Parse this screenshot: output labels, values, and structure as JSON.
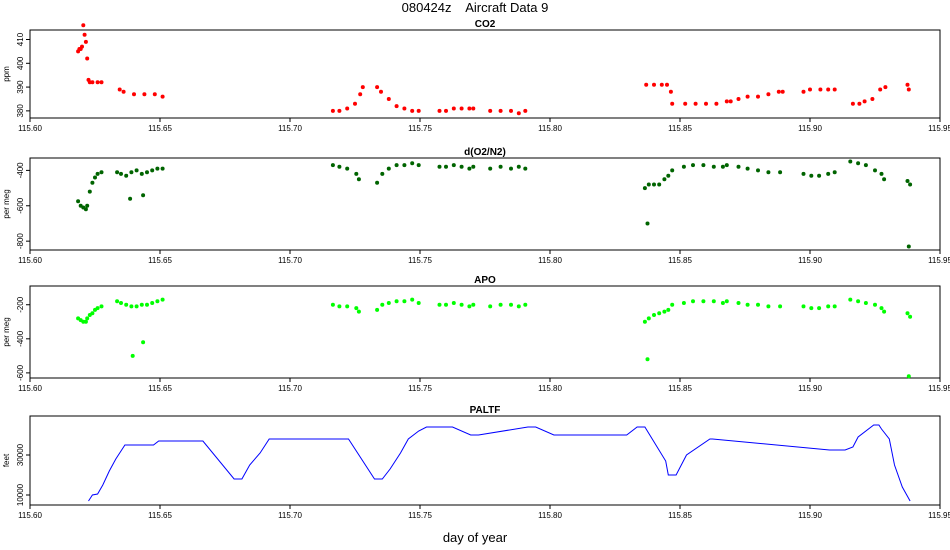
{
  "page": {
    "title": "080424z    Aircraft Data 9",
    "xlabel": "day of year"
  },
  "chart_data": [
    {
      "type": "scatter",
      "title": "CO2",
      "ylabel": "ppm",
      "color": "#ff0000",
      "xlim": [
        115.6,
        115.95
      ],
      "ylim": [
        377,
        414
      ],
      "xticks": [
        115.6,
        115.65,
        115.7,
        115.75,
        115.8,
        115.85,
        115.9,
        115.95
      ],
      "xtick_labels": [
        "115.60",
        "115.65",
        "115.70",
        "115.75",
        "115.80",
        "115.85",
        "115.90",
        "115.95"
      ],
      "yticks": [
        380,
        390,
        400,
        410
      ],
      "ytick_labels": [
        "380",
        "390",
        "400",
        "410"
      ],
      "series": [
        {
          "x": [
            115.6185,
            115.619,
            115.6195,
            115.62,
            115.6205,
            115.621,
            115.6215,
            115.622,
            115.6225,
            115.623,
            115.624,
            115.626,
            115.6275,
            115.6345,
            115.636,
            115.64,
            115.644,
            115.648,
            115.651,
            115.7165,
            115.719,
            115.722,
            115.725,
            115.727,
            115.728,
            115.7335,
            115.735,
            115.738,
            115.741,
            115.744,
            115.747,
            115.7495,
            115.7575,
            115.76,
            115.763,
            115.766,
            115.769,
            115.7705,
            115.777,
            115.781,
            115.785,
            115.788,
            115.7905,
            115.837,
            115.84,
            115.843,
            115.845,
            115.8465,
            115.847,
            115.852,
            115.856,
            115.86,
            115.864,
            115.868,
            115.8695,
            115.8725,
            115.876,
            115.88,
            115.884,
            115.888,
            115.8895,
            115.8975,
            115.9,
            115.904,
            115.907,
            115.9095,
            115.9165,
            115.919,
            115.921,
            115.924,
            115.927,
            115.929,
            115.9375,
            115.938
          ],
          "y": [
            405,
            406,
            406,
            407,
            416,
            412,
            409,
            402,
            393,
            392,
            392,
            392,
            392,
            389,
            388,
            387,
            387,
            387,
            386,
            380,
            380,
            381,
            383,
            387,
            390,
            390,
            388,
            385,
            382,
            381,
            380,
            380,
            380,
            380,
            381,
            381,
            381,
            381,
            380,
            380,
            380,
            379,
            380,
            391,
            391,
            391,
            391,
            388,
            383,
            383,
            383,
            383,
            383,
            384,
            384,
            385,
            386,
            386,
            387,
            388,
            388,
            388,
            389,
            389,
            389,
            389,
            383,
            383,
            384,
            385,
            389,
            390,
            391,
            389
          ]
        }
      ]
    },
    {
      "type": "scatter",
      "title": "d(O2/N2)",
      "ylabel": "per meg",
      "color": "#006400",
      "xlim": [
        115.6,
        115.95
      ],
      "ylim": [
        -850,
        -330
      ],
      "xticks": [
        115.6,
        115.65,
        115.7,
        115.75,
        115.8,
        115.85,
        115.9,
        115.95
      ],
      "xtick_labels": [
        "115.60",
        "115.65",
        "115.70",
        "115.75",
        "115.80",
        "115.85",
        "115.90",
        "115.95"
      ],
      "yticks": [
        -800,
        -600,
        -400
      ],
      "ytick_labels": [
        "-800",
        "-600",
        "-400"
      ],
      "series": [
        {
          "x": [
            115.6185,
            115.6195,
            115.6205,
            115.6215,
            115.622,
            115.623,
            115.624,
            115.625,
            115.626,
            115.6275,
            115.6335,
            115.635,
            115.637,
            115.639,
            115.641,
            115.643,
            115.645,
            115.647,
            115.649,
            115.651,
            115.6385,
            115.6435,
            115.7165,
            115.719,
            115.722,
            115.7255,
            115.7265,
            115.7335,
            115.7355,
            115.738,
            115.741,
            115.744,
            115.747,
            115.7495,
            115.7575,
            115.76,
            115.763,
            115.766,
            115.769,
            115.7705,
            115.777,
            115.781,
            115.785,
            115.788,
            115.7905,
            115.8365,
            115.838,
            115.84,
            115.842,
            115.844,
            115.8455,
            115.847,
            115.8375,
            115.8515,
            115.855,
            115.859,
            115.863,
            115.8665,
            115.868,
            115.8725,
            115.876,
            115.88,
            115.884,
            115.8885,
            115.8975,
            115.9005,
            115.9035,
            115.907,
            115.9095,
            115.9155,
            115.9185,
            115.9215,
            115.925,
            115.9275,
            115.9285,
            115.9375,
            115.9385,
            115.938
          ],
          "y": [
            -575,
            -600,
            -610,
            -620,
            -600,
            -520,
            -470,
            -440,
            -420,
            -410,
            -410,
            -420,
            -430,
            -410,
            -400,
            -420,
            -410,
            -400,
            -390,
            -390,
            -560,
            -540,
            -370,
            -380,
            -390,
            -420,
            -450,
            -470,
            -420,
            -390,
            -370,
            -370,
            -360,
            -370,
            -380,
            -380,
            -370,
            -380,
            -390,
            -380,
            -390,
            -380,
            -390,
            -380,
            -390,
            -500,
            -480,
            -480,
            -480,
            -450,
            -430,
            -400,
            -700,
            -380,
            -370,
            -370,
            -380,
            -380,
            -370,
            -380,
            -390,
            -400,
            -410,
            -410,
            -420,
            -430,
            -430,
            -420,
            -410,
            -350,
            -360,
            -370,
            -400,
            -420,
            -450,
            -460,
            -480,
            -830
          ]
        }
      ]
    },
    {
      "type": "scatter",
      "title": "APO",
      "ylabel": "per meg",
      "color": "#00ff00",
      "xlim": [
        115.6,
        115.95
      ],
      "ylim": [
        -630,
        -90
      ],
      "xticks": [
        115.6,
        115.65,
        115.7,
        115.75,
        115.8,
        115.85,
        115.9,
        115.95
      ],
      "xtick_labels": [
        "115.60",
        "115.65",
        "115.70",
        "115.75",
        "115.80",
        "115.85",
        "115.90",
        "115.95"
      ],
      "yticks": [
        -600,
        -400,
        -200
      ],
      "ytick_labels": [
        "-600",
        "-400",
        "-200"
      ],
      "series": [
        {
          "x": [
            115.6185,
            115.6195,
            115.6205,
            115.6215,
            115.622,
            115.623,
            115.624,
            115.625,
            115.626,
            115.6275,
            115.6335,
            115.635,
            115.637,
            115.639,
            115.641,
            115.643,
            115.645,
            115.647,
            115.649,
            115.651,
            115.6395,
            115.6435,
            115.7165,
            115.719,
            115.722,
            115.7255,
            115.7265,
            115.7335,
            115.7355,
            115.738,
            115.741,
            115.744,
            115.747,
            115.7495,
            115.7575,
            115.76,
            115.763,
            115.766,
            115.769,
            115.7705,
            115.777,
            115.781,
            115.785,
            115.788,
            115.7905,
            115.8365,
            115.838,
            115.84,
            115.842,
            115.844,
            115.8455,
            115.847,
            115.8375,
            115.8515,
            115.855,
            115.859,
            115.863,
            115.8665,
            115.868,
            115.8725,
            115.876,
            115.88,
            115.884,
            115.8885,
            115.8975,
            115.9005,
            115.9035,
            115.907,
            115.9095,
            115.9155,
            115.9185,
            115.9215,
            115.925,
            115.9275,
            115.9285,
            115.9375,
            115.9385,
            115.938
          ],
          "y": [
            -280,
            -290,
            -300,
            -300,
            -280,
            -260,
            -250,
            -230,
            -220,
            -210,
            -180,
            -190,
            -200,
            -210,
            -210,
            -200,
            -200,
            -190,
            -180,
            -170,
            -500,
            -420,
            -200,
            -210,
            -210,
            -220,
            -240,
            -230,
            -200,
            -190,
            -180,
            -180,
            -170,
            -190,
            -200,
            -200,
            -190,
            -200,
            -210,
            -200,
            -210,
            -200,
            -200,
            -210,
            -200,
            -300,
            -280,
            -260,
            -250,
            -240,
            -230,
            -200,
            -520,
            -190,
            -180,
            -180,
            -180,
            -190,
            -180,
            -190,
            -200,
            -200,
            -210,
            -210,
            -210,
            -220,
            -220,
            -210,
            -210,
            -170,
            -180,
            -190,
            -200,
            -220,
            -240,
            -250,
            -270,
            -620
          ]
        }
      ]
    },
    {
      "type": "line",
      "title": "PALTF",
      "ylabel": "feet",
      "color": "#0000ff",
      "xlim": [
        115.6,
        115.95
      ],
      "ylim": [
        5000,
        49500
      ],
      "xticks": [
        115.6,
        115.65,
        115.7,
        115.75,
        115.8,
        115.85,
        115.9,
        115.95
      ],
      "xtick_labels": [
        "115.60",
        "115.65",
        "115.70",
        "115.75",
        "115.80",
        "115.85",
        "115.90",
        "115.95"
      ],
      "yticks": [
        10000,
        30000
      ],
      "ytick_labels": [
        "10000",
        "30000"
      ],
      "series": [
        {
          "x": [
            115.6225,
            115.6235,
            115.624,
            115.626,
            115.628,
            115.6305,
            115.633,
            115.635,
            115.6365,
            115.6475,
            115.6495,
            115.6665,
            115.6785,
            115.6815,
            115.6845,
            115.6885,
            115.692,
            115.7225,
            115.7325,
            115.7355,
            115.7385,
            115.7425,
            115.7455,
            115.7495,
            115.7525,
            115.7625,
            115.7695,
            115.7725,
            115.7915,
            115.7945,
            115.8015,
            115.8295,
            115.8335,
            115.8365,
            115.8445,
            115.8455,
            115.8465,
            115.8485,
            115.8525,
            115.8615,
            115.8625,
            115.9075,
            115.9095,
            115.9135,
            115.9165,
            115.9185,
            115.9245,
            115.9265,
            115.9275,
            115.9305,
            115.9325,
            115.9355,
            115.9385
          ],
          "y": [
            7000,
            9000,
            10000,
            10500,
            15000,
            22000,
            28000,
            32000,
            35000,
            35000,
            37000,
            37000,
            18000,
            18000,
            25000,
            31000,
            38000,
            38000,
            18000,
            18000,
            23000,
            31000,
            38000,
            42000,
            44000,
            44000,
            40000,
            40000,
            44000,
            44000,
            40000,
            40000,
            44000,
            44000,
            27000,
            20000,
            20000,
            20000,
            30000,
            38000,
            38000,
            32500,
            32500,
            32500,
            34000,
            39000,
            45000,
            45000,
            43000,
            38000,
            25000,
            14000,
            7000
          ]
        }
      ]
    }
  ]
}
